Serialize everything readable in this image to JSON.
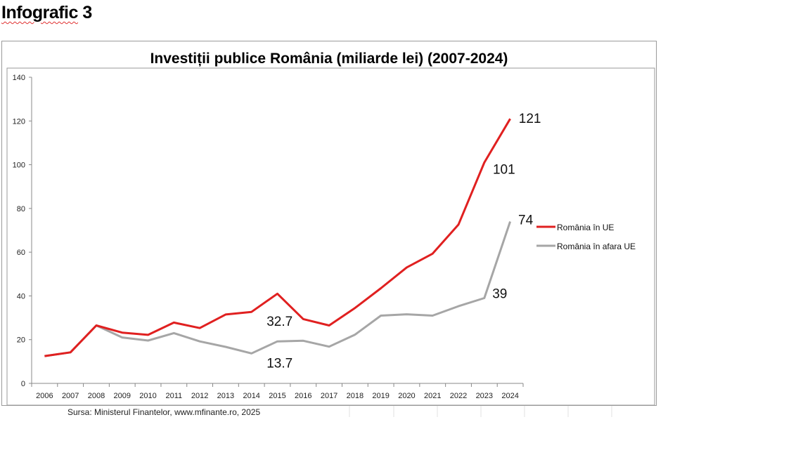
{
  "heading": {
    "word": "Infografic",
    "number": "3"
  },
  "chart_data": {
    "type": "line",
    "title": "Investiții publice România (miliarde lei) (2007-2024)",
    "xlabel": "",
    "ylabel": "",
    "ylim": [
      0,
      140
    ],
    "yticks": [
      0,
      20,
      40,
      60,
      80,
      100,
      120,
      140
    ],
    "categories": [
      "2006",
      "2007",
      "2008",
      "2009",
      "2010",
      "2011",
      "2012",
      "2013",
      "2014",
      "2015",
      "2016",
      "2017",
      "2018",
      "2019",
      "2020",
      "2021",
      "2022",
      "2023",
      "2024"
    ],
    "series": [
      {
        "name": "România în UE",
        "color": "#e02020",
        "values": [
          12.5,
          14.2,
          26.5,
          23.2,
          22.2,
          27.8,
          25.3,
          31.5,
          32.7,
          41.0,
          29.4,
          26.5,
          34.5,
          43.5,
          53.0,
          59.3,
          72.6,
          101,
          121
        ]
      },
      {
        "name": "România în afara UE",
        "color": "#a6a6a6",
        "values": [
          12.5,
          14.2,
          26.5,
          21.0,
          19.6,
          23.0,
          19.2,
          16.7,
          13.7,
          19.2,
          19.5,
          16.8,
          22.3,
          31.0,
          31.6,
          31.0,
          35.3,
          39,
          74
        ]
      }
    ],
    "data_labels": [
      {
        "series": 0,
        "index": 8,
        "text": "32.7"
      },
      {
        "series": 1,
        "index": 8,
        "text": "13.7"
      },
      {
        "series": 0,
        "index": 17,
        "text": "101"
      },
      {
        "series": 1,
        "index": 17,
        "text": "39"
      },
      {
        "series": 0,
        "index": 18,
        "text": "121"
      },
      {
        "series": 1,
        "index": 18,
        "text": "74"
      }
    ],
    "legend": "right",
    "grid": false
  },
  "source": "Sursa: Ministerul Finantelor, www.mfinante.ro, 2025"
}
